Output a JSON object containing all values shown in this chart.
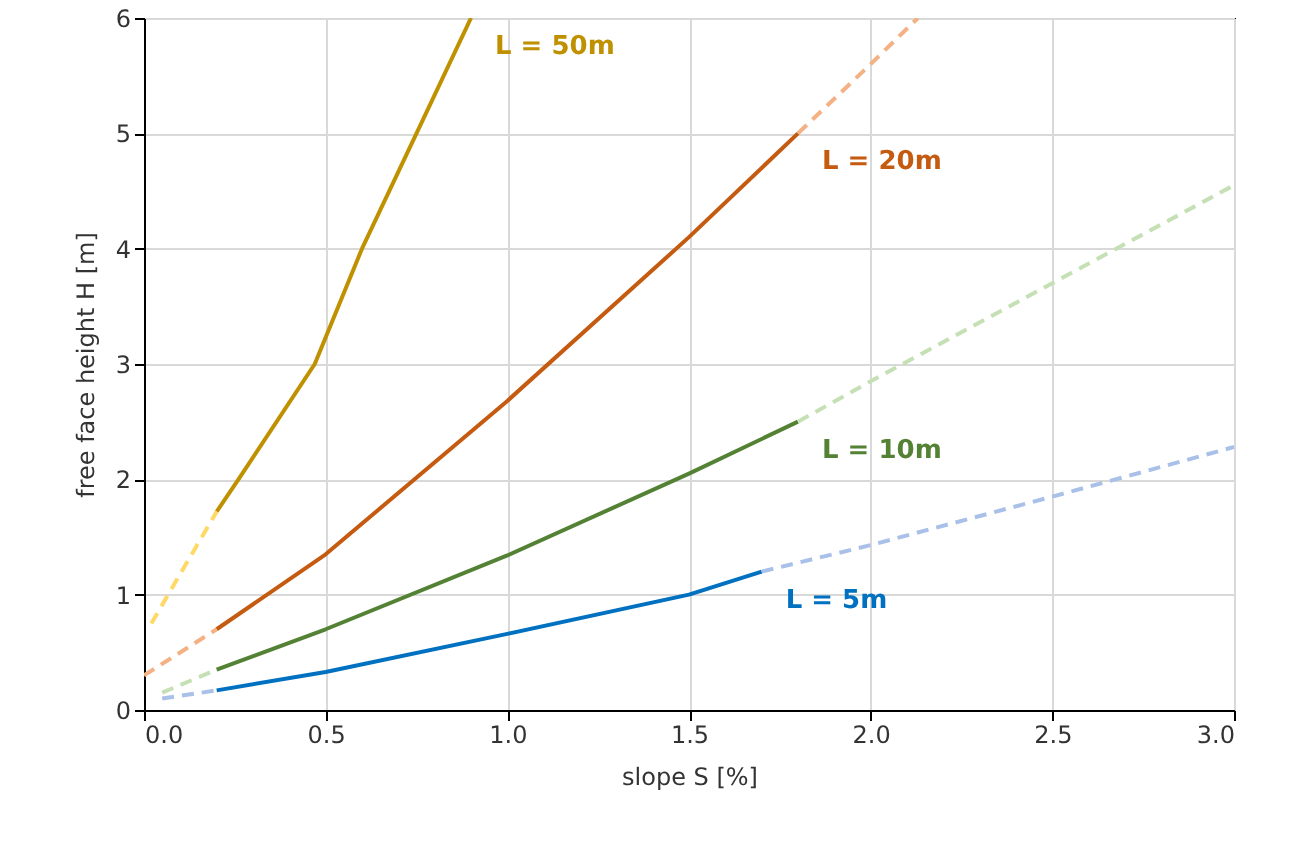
{
  "chart_data": {
    "type": "line",
    "xlabel": "slope S [%]",
    "ylabel": "free face height H [m]",
    "xlim": [
      0,
      3
    ],
    "ylim": [
      0,
      6
    ],
    "xticks": [
      {
        "value": 0,
        "label": "0.0"
      },
      0.5,
      {
        "value": 1,
        "label": "1.0"
      },
      1.5,
      {
        "value": 2,
        "label": "2.0"
      },
      2.5,
      {
        "value": 3,
        "label": "3.0"
      }
    ],
    "yticks": [
      0,
      1,
      2,
      3,
      4,
      5,
      6
    ],
    "grid": true,
    "marker": "none",
    "series": [
      {
        "name": "L = 50m",
        "color": "#bf9000",
        "line_style": "solid",
        "x": [
          0.2,
          0.26,
          0.47,
          0.6,
          0.75,
          0.9
        ],
        "values": [
          1.72,
          2.0,
          3.0,
          4.0,
          5.0,
          6.0
        ]
      },
      {
        "name": "L = 20m",
        "color": "#c55a11",
        "line_style": "solid",
        "x": [
          0.2,
          0.5,
          1.0,
          1.5,
          1.8
        ],
        "values": [
          0.7,
          1.35,
          2.68,
          4.1,
          5.0
        ]
      },
      {
        "name": "L = 10m",
        "color": "#548235",
        "line_style": "solid",
        "x": [
          0.2,
          0.5,
          1.0,
          1.5,
          1.8
        ],
        "values": [
          0.35,
          0.7,
          1.34,
          2.05,
          2.5
        ]
      },
      {
        "name": "L = 5m",
        "color": "#0070c0",
        "line_style": "solid",
        "x": [
          0.2,
          0.5,
          1.0,
          1.5,
          1.7
        ],
        "values": [
          0.17,
          0.33,
          0.66,
          1.0,
          1.2
        ]
      },
      {
        "color": "#ffd966",
        "line_style": "dashed",
        "x": [
          0.02,
          0.2
        ],
        "values": [
          0.75,
          1.72
        ]
      },
      {
        "color": "#f4b183",
        "line_style": "dashed",
        "x": [
          0.0,
          0.2
        ],
        "values": [
          0.3,
          0.7
        ]
      },
      {
        "color": "#f4b183",
        "line_style": "dashed",
        "x": [
          1.8,
          2.0,
          2.13
        ],
        "values": [
          5.0,
          5.6,
          6.0
        ]
      },
      {
        "color": "#c5e0b4",
        "line_style": "dashed",
        "x": [
          0.05,
          0.2
        ],
        "values": [
          0.15,
          0.35
        ]
      },
      {
        "color": "#c5e0b4",
        "line_style": "dashed",
        "x": [
          1.8,
          2.0,
          2.5,
          3.0
        ],
        "values": [
          2.5,
          2.85,
          3.7,
          4.55
        ]
      },
      {
        "color": "#a9c0e8",
        "line_style": "dashed",
        "x": [
          0.05,
          0.2
        ],
        "values": [
          0.1,
          0.17
        ]
      },
      {
        "color": "#a9c0e8",
        "line_style": "dashed",
        "x": [
          1.7,
          2.0,
          2.5,
          3.0
        ],
        "values": [
          1.2,
          1.43,
          1.85,
          2.28
        ]
      }
    ]
  }
}
